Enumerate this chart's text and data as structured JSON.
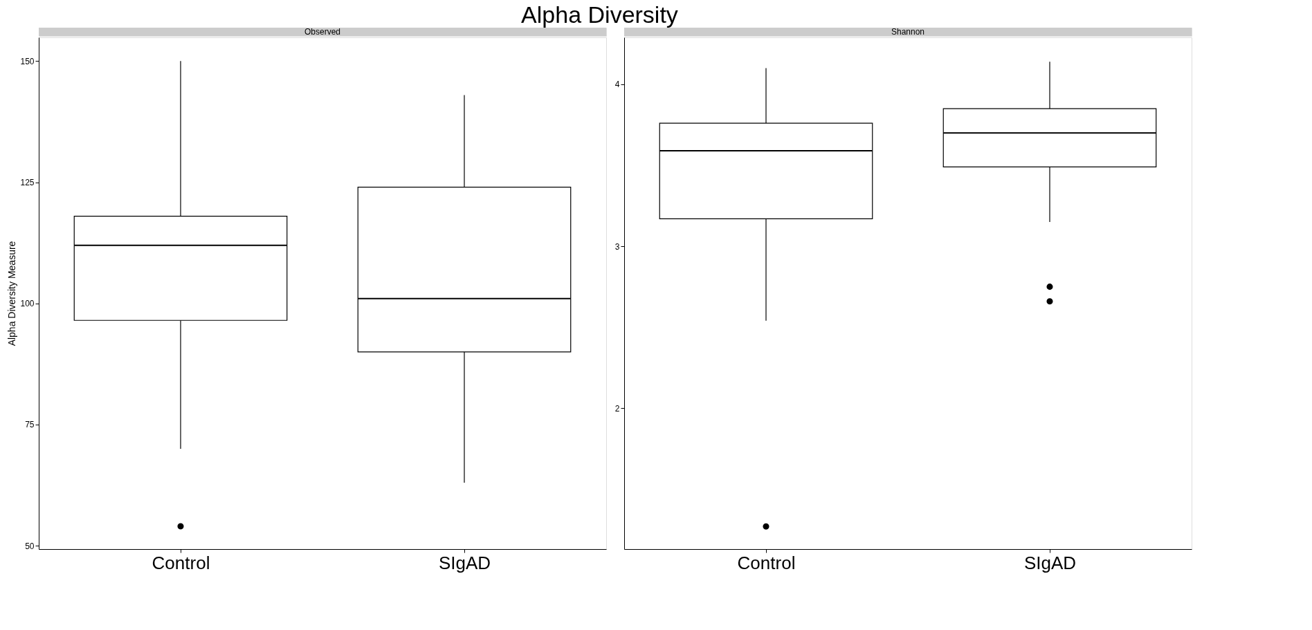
{
  "chart_data": [
    {
      "type": "box",
      "title": "Alpha Diversity",
      "subtitle": "Observed",
      "ylabel": "Alpha Diversity Measure",
      "categories": [
        "Control",
        "SIgAD"
      ],
      "ylim": [
        49.3,
        154.9
      ],
      "yticks": [
        50,
        75,
        100,
        125,
        150
      ],
      "grid": false,
      "boxes": [
        {
          "low": 70,
          "q1": 96.5,
          "median": 112,
          "q3": 118,
          "high": 150,
          "outliers": [
            54
          ]
        },
        {
          "low": 63,
          "q1": 90,
          "median": 101,
          "q3": 124,
          "high": 143
        }
      ]
    },
    {
      "type": "box",
      "subtitle": "Shannon",
      "categories": [
        "Control",
        "SIgAD"
      ],
      "ylim": [
        1.13,
        4.29
      ],
      "yticks": [
        2,
        3,
        4
      ],
      "grid": false,
      "boxes": [
        {
          "low": 2.54,
          "q1": 3.17,
          "median": 3.59,
          "q3": 3.76,
          "high": 4.1,
          "outliers": [
            1.27
          ]
        },
        {
          "low": 3.15,
          "q1": 3.49,
          "median": 3.7,
          "q3": 3.85,
          "high": 4.14,
          "outliers": [
            2.75,
            2.66
          ]
        }
      ]
    }
  ]
}
